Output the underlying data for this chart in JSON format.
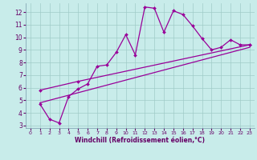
{
  "xlabel": "Windchill (Refroidissement éolien,°C)",
  "bg_color": "#c8ecea",
  "grid_color": "#a0ccc8",
  "line_color": "#990099",
  "xlim": [
    -0.5,
    23.5
  ],
  "ylim": [
    2.8,
    12.7
  ],
  "xticks": [
    0,
    1,
    2,
    3,
    4,
    5,
    6,
    7,
    8,
    9,
    10,
    11,
    12,
    13,
    14,
    15,
    16,
    17,
    18,
    19,
    20,
    21,
    22,
    23
  ],
  "yticks": [
    3,
    4,
    5,
    6,
    7,
    8,
    9,
    10,
    11,
    12
  ],
  "curves": [
    {
      "x": [
        1,
        2,
        3,
        4,
        5,
        6,
        7,
        8,
        9,
        10,
        11,
        12,
        13,
        14,
        15,
        16,
        17,
        18,
        19,
        20,
        21,
        22,
        23
      ],
      "y": [
        4.7,
        3.5,
        3.2,
        5.3,
        5.9,
        6.3,
        7.7,
        7.8,
        8.8,
        10.2,
        8.6,
        12.4,
        12.3,
        10.4,
        12.1,
        11.8,
        10.9,
        9.9,
        9.0,
        9.2,
        9.8,
        9.4,
        9.4
      ]
    },
    {
      "x": [
        1,
        5,
        23
      ],
      "y": [
        5.8,
        6.5,
        9.4
      ]
    },
    {
      "x": [
        1,
        23
      ],
      "y": [
        4.8,
        9.2
      ]
    }
  ]
}
